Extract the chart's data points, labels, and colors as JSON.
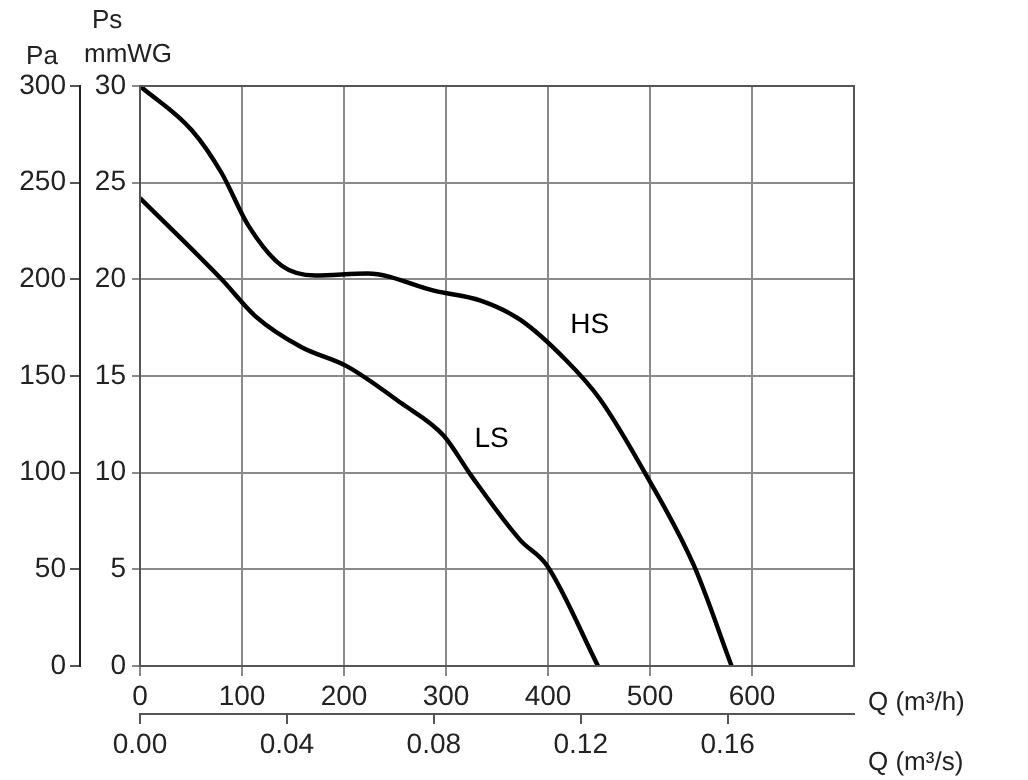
{
  "chart_data": {
    "type": "line",
    "xlabel": "Q (m³/h)",
    "x2label": "Q (m³/s)",
    "ylabel": "Ps mmWG",
    "y2label": "Pa",
    "xlim": [
      0,
      700
    ],
    "xticks": [
      0,
      100,
      200,
      300,
      400,
      500,
      600
    ],
    "x2lim": [
      0,
      0.1944
    ],
    "x2ticks": [
      {
        "value": 0,
        "label": "0.00"
      },
      0.04,
      0.08,
      0.12,
      0.16
    ],
    "ylim": [
      0,
      30
    ],
    "yticks": [
      0,
      5,
      10,
      15,
      20,
      25,
      30
    ],
    "y2lim": [
      0,
      300
    ],
    "y2ticks": [
      0,
      50,
      100,
      150,
      200,
      250,
      300
    ],
    "grid": true,
    "legend": false,
    "marker": "none",
    "line_style": "solid",
    "series": [
      {
        "name": "HS",
        "color": "#000000",
        "x": [
          0,
          51,
          80,
          106,
          139,
          172,
          223,
          289,
          334,
          373,
          418,
          451,
          496,
          543,
          580
        ],
        "values": [
          30,
          27.7,
          25.5,
          22.8,
          20.7,
          20.2,
          20.3,
          19.4,
          18.9,
          17.9,
          15.8,
          13.8,
          9.9,
          5.2,
          0
        ]
      },
      {
        "name": "LS",
        "color": "#000000",
        "x": [
          0,
          80,
          113,
          158,
          203,
          256,
          298,
          324,
          373,
          399,
          449
        ],
        "values": [
          24.2,
          20,
          18.1,
          16.5,
          15.5,
          13.6,
          11.9,
          9.9,
          6.5,
          5.2,
          0
        ]
      }
    ]
  }
}
